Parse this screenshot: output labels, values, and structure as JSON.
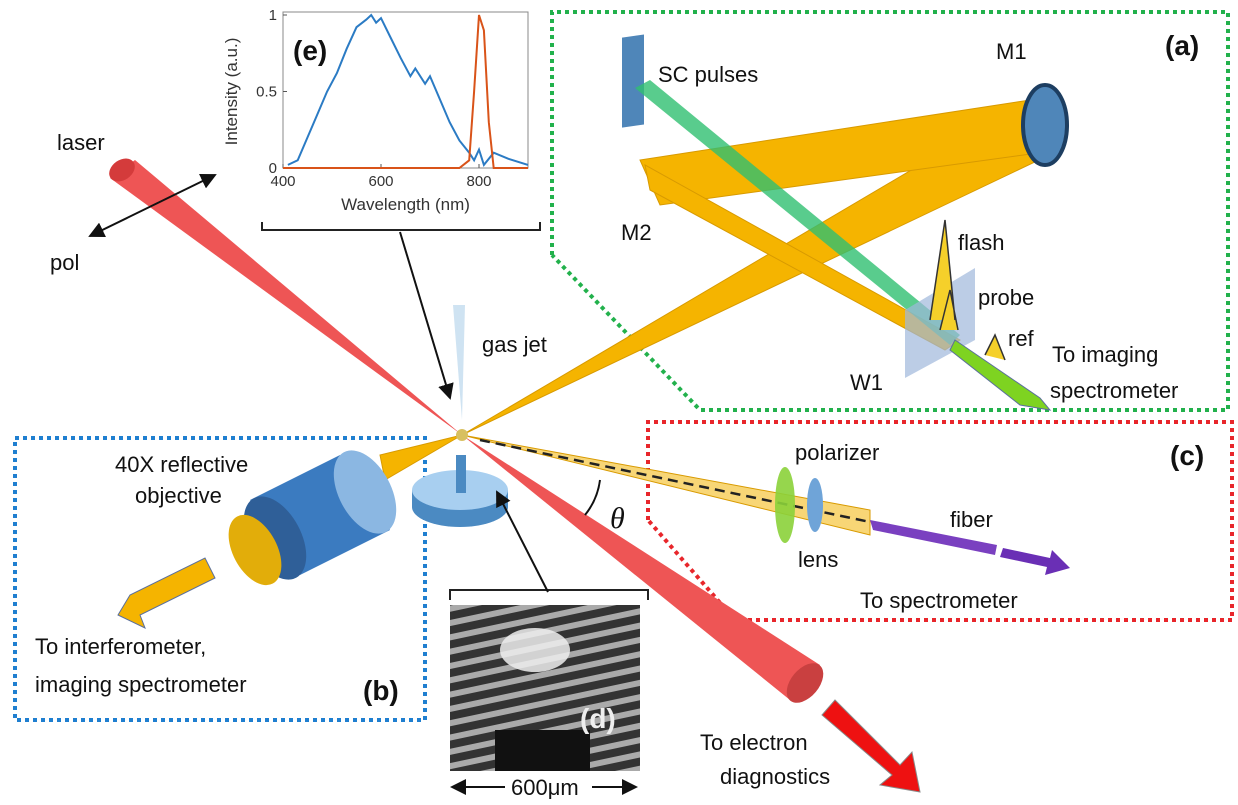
{
  "panels": {
    "a": "(a)",
    "b": "(b)",
    "c": "(c)",
    "d": "(d)",
    "e": "(e)"
  },
  "labels": {
    "laser": "laser",
    "pol": "pol",
    "gas_jet": "gas jet",
    "sc_pulses": "SC pulses",
    "m1": "M1",
    "m2": "M2",
    "flash": "flash",
    "probe": "probe",
    "ref": "ref",
    "to_imaging": [
      "To imaging",
      "spectrometer"
    ],
    "w1": "W1",
    "objective": [
      "40X reflective",
      "objective"
    ],
    "polarizer": "polarizer",
    "lens": "lens",
    "fiber": "fiber",
    "to_spectrometer": "To spectrometer",
    "to_interferometer": [
      "To interferometer,",
      "imaging spectrometer"
    ],
    "to_electron": [
      "To electron",
      "diagnostics"
    ],
    "theta": "θ",
    "scale": "600μm"
  },
  "inset_chart": {
    "type": "line",
    "xlabel": "Wavelength (nm)",
    "ylabel": "Intensity (a.u.)",
    "xlim": [
      400,
      900
    ],
    "ylim": [
      0,
      1
    ],
    "xticks": [
      400,
      600,
      800
    ],
    "yticks": [
      0,
      0.5,
      1
    ],
    "series": [
      {
        "color": "#2b7bc4",
        "x": [
          410,
          430,
          450,
          470,
          490,
          510,
          530,
          550,
          570,
          580,
          590,
          600,
          620,
          640,
          660,
          670,
          690,
          700,
          720,
          740,
          760,
          780,
          790,
          800,
          810,
          830,
          860,
          900
        ],
        "values": [
          0.02,
          0.05,
          0.2,
          0.35,
          0.5,
          0.62,
          0.78,
          0.92,
          0.97,
          1.0,
          0.95,
          0.98,
          0.85,
          0.72,
          0.6,
          0.65,
          0.55,
          0.6,
          0.45,
          0.3,
          0.18,
          0.1,
          0.05,
          0.12,
          0.02,
          0.1,
          0.06,
          0.02
        ]
      },
      {
        "color": "#d95319",
        "x": [
          400,
          760,
          780,
          790,
          800,
          810,
          820,
          830,
          900
        ],
        "values": [
          0,
          0,
          0.05,
          0.5,
          1.0,
          0.9,
          0.3,
          0,
          0
        ]
      }
    ]
  }
}
